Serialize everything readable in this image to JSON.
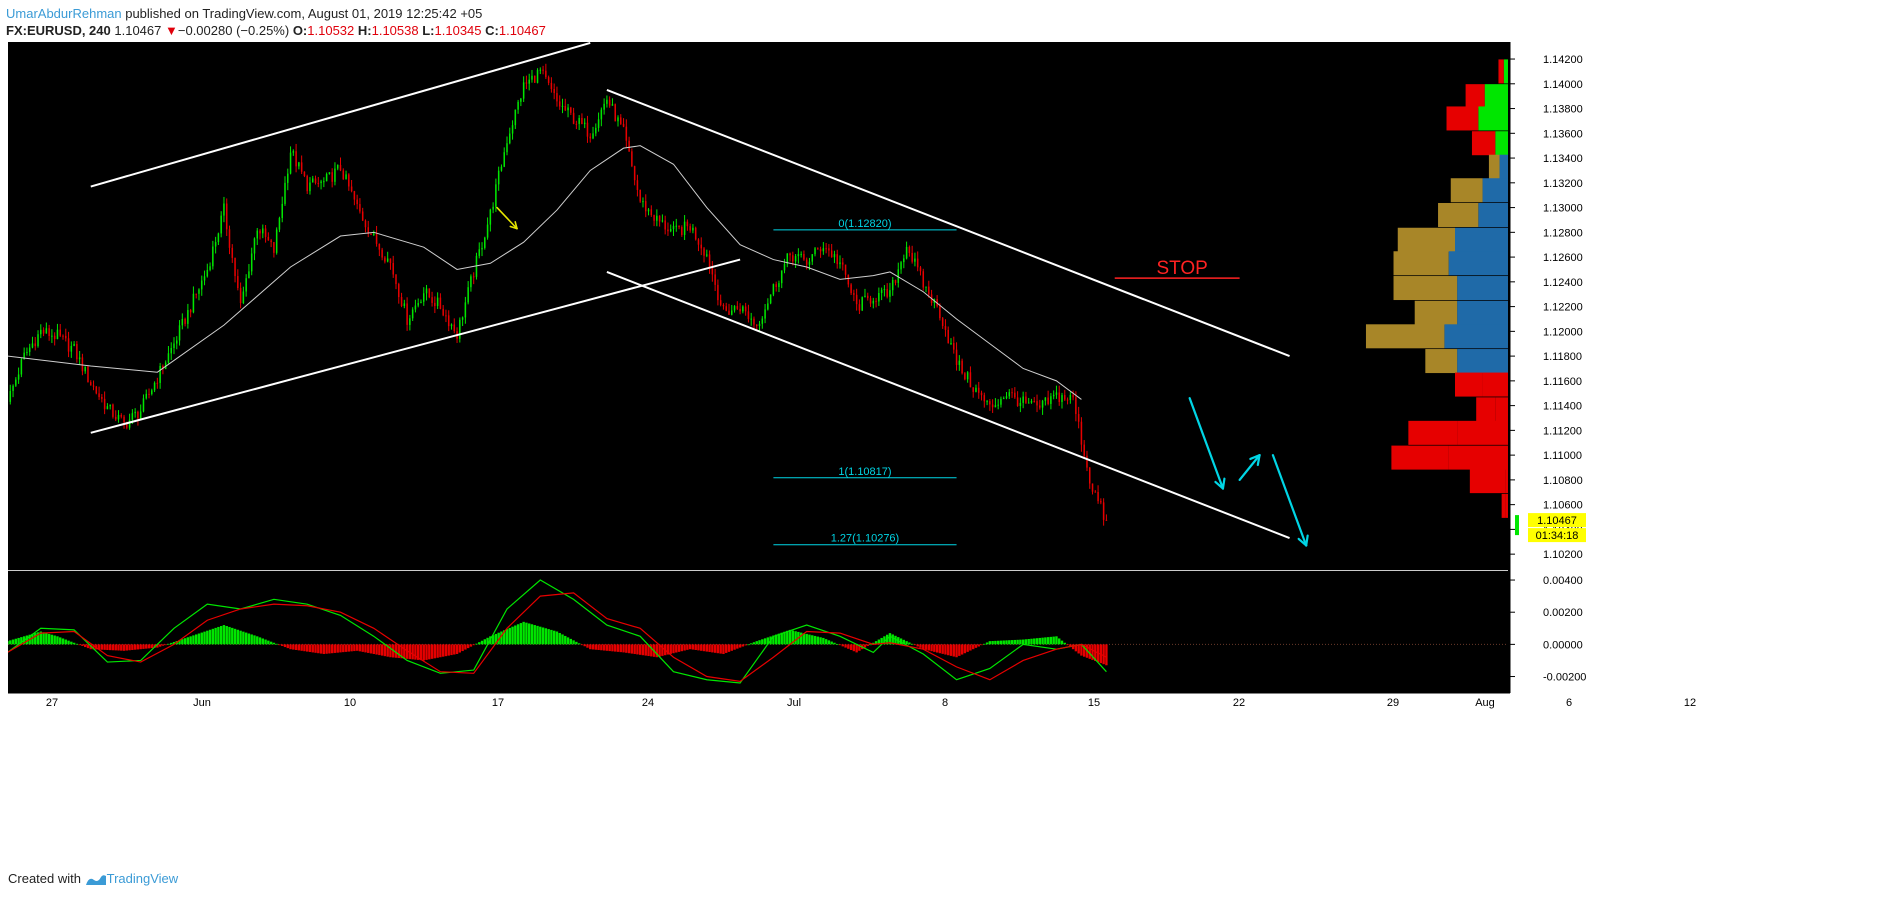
{
  "header": {
    "author": "UmarAbdurRehman",
    "published": " published on TradingView.com, August 01, 2019 12:25:42 +05",
    "symbol": "FX:EURUSD, 240",
    "last": "1.10467",
    "change_arrow": "▼",
    "change": "−0.00280 (−0.25%)",
    "o_label": "O:",
    "o_value": "1.10532",
    "h_label": "H:",
    "h_value": "1.10538",
    "l_label": "L:",
    "l_value": "1.10345",
    "c_label": "C:",
    "c_value": "1.10467"
  },
  "footer": {
    "created_with": "Created with",
    "brand": "TradingView"
  },
  "colors": {
    "background": "#000000",
    "up": "#00e600",
    "down": "#e60000",
    "line": "#ffffff",
    "accent": "#00d5e5",
    "stop": "#ff2222",
    "marker": "#e6e600",
    "vp_buy": "#1f6aa8",
    "vp_sell": "#a88628"
  },
  "chart_data": {
    "type": "candlestick",
    "symbol": "FX:EURUSD",
    "interval": "240",
    "x_ticks": [
      "27",
      "Jun",
      "10",
      "17",
      "24",
      "Jul",
      "8",
      "15",
      "22",
      "29",
      "Aug",
      "6",
      "12"
    ],
    "y_ticks": [
      "1.14200",
      "1.14000",
      "1.13800",
      "1.13600",
      "1.13400",
      "1.13200",
      "1.13000",
      "1.12800",
      "1.12600",
      "1.12400",
      "1.12200",
      "1.12000",
      "1.11800",
      "1.11600",
      "1.11400",
      "1.11200",
      "1.11000",
      "1.10800",
      "1.10600",
      "1.10400",
      "1.10200"
    ],
    "ylim": [
      1.1008,
      1.1437
    ],
    "day_range": [
      0,
      68
    ],
    "close_path": [
      [
        0,
        1.1143
      ],
      [
        1,
        1.118
      ],
      [
        2,
        1.12
      ],
      [
        3,
        1.1196
      ],
      [
        4,
        1.1185
      ],
      [
        5,
        1.1158
      ],
      [
        6,
        1.1138
      ],
      [
        7,
        1.1125
      ],
      [
        8,
        1.1136
      ],
      [
        9,
        1.1163
      ],
      [
        10,
        1.119
      ],
      [
        11,
        1.122
      ],
      [
        12,
        1.125
      ],
      [
        13,
        1.1298
      ],
      [
        14,
        1.122
      ],
      [
        15,
        1.1285
      ],
      [
        16,
        1.1265
      ],
      [
        17,
        1.1346
      ],
      [
        18,
        1.1318
      ],
      [
        19,
        1.132
      ],
      [
        20,
        1.1332
      ],
      [
        21,
        1.13
      ],
      [
        22,
        1.1275
      ],
      [
        23,
        1.1255
      ],
      [
        24,
        1.121
      ],
      [
        25,
        1.1232
      ],
      [
        26,
        1.122
      ],
      [
        27,
        1.1198
      ],
      [
        28,
        1.1248
      ],
      [
        29,
        1.1295
      ],
      [
        30,
        1.1355
      ],
      [
        31,
        1.1398
      ],
      [
        32,
        1.141
      ],
      [
        33,
        1.1385
      ],
      [
        34,
        1.1372
      ],
      [
        35,
        1.136
      ],
      [
        36,
        1.1388
      ],
      [
        37,
        1.136
      ],
      [
        38,
        1.1305
      ],
      [
        39,
        1.129
      ],
      [
        40,
        1.128
      ],
      [
        41,
        1.1285
      ],
      [
        42,
        1.1262
      ],
      [
        43,
        1.1215
      ],
      [
        44,
        1.122
      ],
      [
        45,
        1.1205
      ],
      [
        46,
        1.1235
      ],
      [
        47,
        1.1262
      ],
      [
        48,
        1.1256
      ],
      [
        49,
        1.127
      ],
      [
        50,
        1.1255
      ],
      [
        51,
        1.122
      ],
      [
        52,
        1.1228
      ],
      [
        53,
        1.123
      ],
      [
        54,
        1.127
      ],
      [
        55,
        1.1238
      ],
      [
        56,
        1.1215
      ],
      [
        57,
        1.1175
      ],
      [
        58,
        1.1155
      ],
      [
        59,
        1.1138
      ],
      [
        60,
        1.115
      ],
      [
        61,
        1.1142
      ],
      [
        62,
        1.1138
      ],
      [
        63,
        1.1148
      ],
      [
        64,
        1.1145
      ],
      [
        65,
        1.108
      ],
      [
        66,
        1.1045
      ]
    ],
    "moving_average": [
      [
        0,
        1.118
      ],
      [
        5,
        1.1172
      ],
      [
        9,
        1.1167
      ],
      [
        13,
        1.1205
      ],
      [
        17,
        1.1252
      ],
      [
        20,
        1.1277
      ],
      [
        22,
        1.128
      ],
      [
        25,
        1.1268
      ],
      [
        27,
        1.125
      ],
      [
        29,
        1.1255
      ],
      [
        31,
        1.1272
      ],
      [
        33,
        1.1298
      ],
      [
        35,
        1.133
      ],
      [
        37,
        1.1348
      ],
      [
        38,
        1.135
      ],
      [
        40,
        1.1335
      ],
      [
        42,
        1.13
      ],
      [
        44,
        1.127
      ],
      [
        46,
        1.1258
      ],
      [
        48,
        1.1252
      ],
      [
        50,
        1.1242
      ],
      [
        52,
        1.1245
      ],
      [
        53,
        1.1248
      ],
      [
        55,
        1.1232
      ],
      [
        57,
        1.121
      ],
      [
        59,
        1.119
      ],
      [
        61,
        1.117
      ],
      [
        63,
        1.116
      ],
      [
        64.5,
        1.1145
      ]
    ],
    "trendlines": [
      {
        "name": "ascending-channel-top",
        "from": [
          5,
          1.1317
        ],
        "to": [
          35,
          1.1433
        ]
      },
      {
        "name": "ascending-channel-bottom",
        "from": [
          5,
          1.1118
        ],
        "to": [
          44,
          1.1258
        ]
      },
      {
        "name": "descending-channel-top",
        "from": [
          36,
          1.1395
        ],
        "to": [
          77,
          1.118
        ]
      },
      {
        "name": "descending-channel-bottom",
        "from": [
          36,
          1.1248
        ],
        "to": [
          77,
          1.1033
        ]
      }
    ],
    "fib_levels": [
      {
        "label": "0(1.12820)",
        "value": 1.1282,
        "from": 46,
        "to": 57
      },
      {
        "label": "1(1.10817)",
        "value": 1.10817,
        "from": 46,
        "to": 57
      },
      {
        "label": "1.27(1.10276)",
        "value": 1.10276,
        "from": 46,
        "to": 57
      }
    ],
    "stop_label": "STOP",
    "stop_line": {
      "value": 1.1243,
      "from": 66.5,
      "to": 74
    },
    "projection_arrows": [
      {
        "from": [
          71,
          1.1146
        ],
        "to": [
          73,
          1.1073
        ]
      },
      {
        "from": [
          74,
          1.108
        ],
        "to": [
          75.2,
          1.11
        ]
      },
      {
        "from": [
          76,
          1.11
        ],
        "to": [
          78,
          1.1027
        ]
      }
    ],
    "marker_arrow": {
      "from": [
        29.4,
        1.13
      ],
      "to": [
        30.6,
        1.1283
      ]
    },
    "last_price": {
      "value": 1.10467,
      "label": "1.10467",
      "countdown": "01:34:18"
    },
    "volume_profile": [
      {
        "price": 1.141,
        "buy": 4,
        "sell": 5
      },
      {
        "price": 1.139,
        "buy": 22,
        "sell": 18
      },
      {
        "price": 1.1372,
        "buy": 28,
        "sell": 30
      },
      {
        "price": 1.1352,
        "buy": 12,
        "sell": 22
      },
      {
        "price": 1.1333,
        "buy": 8,
        "sell": 10
      },
      {
        "price": 1.1314,
        "buy": 24,
        "sell": 30
      },
      {
        "price": 1.1294,
        "buy": 28,
        "sell": 38
      },
      {
        "price": 1.1274,
        "buy": 50,
        "sell": 54
      },
      {
        "price": 1.1255,
        "buy": 56,
        "sell": 52
      },
      {
        "price": 1.1235,
        "buy": 48,
        "sell": 60
      },
      {
        "price": 1.1215,
        "buy": 48,
        "sell": 40
      },
      {
        "price": 1.1196,
        "buy": 60,
        "sell": 74
      },
      {
        "price": 1.1176,
        "buy": 48,
        "sell": 30
      },
      {
        "price": 1.1157,
        "buy": 24,
        "sell": 26
      },
      {
        "price": 1.1137,
        "buy": 12,
        "sell": 18
      },
      {
        "price": 1.1118,
        "buy": 48,
        "sell": 46
      },
      {
        "price": 1.1098,
        "buy": 56,
        "sell": 54
      },
      {
        "price": 1.1079,
        "buy": 2,
        "sell": 34
      },
      {
        "price": 1.1059,
        "buy": 2,
        "sell": 4
      }
    ],
    "macd": {
      "y_ticks": [
        "0.00400",
        "0.00200",
        "0.00000",
        "-0.00200"
      ],
      "ylim": [
        -0.0029,
        0.0045
      ],
      "histogram_path": [
        [
          0,
          0.0002
        ],
        [
          2,
          0.0008
        ],
        [
          3,
          0.0005
        ],
        [
          5,
          -0.0003
        ],
        [
          7,
          -0.0004
        ],
        [
          9,
          -0.0002
        ],
        [
          11,
          0.0005
        ],
        [
          13,
          0.0012
        ],
        [
          15,
          0.0005
        ],
        [
          17,
          -0.0003
        ],
        [
          19,
          -0.0006
        ],
        [
          21,
          -0.0004
        ],
        [
          23,
          -0.0008
        ],
        [
          25,
          -0.001
        ],
        [
          27,
          -0.0006
        ],
        [
          29,
          0.0005
        ],
        [
          31,
          0.0014
        ],
        [
          33,
          0.0008
        ],
        [
          35,
          -0.0003
        ],
        [
          37,
          -0.0005
        ],
        [
          39,
          -0.0008
        ],
        [
          41,
          -0.0003
        ],
        [
          43,
          -0.0006
        ],
        [
          45,
          0.0002
        ],
        [
          47,
          0.0009
        ],
        [
          49,
          0.0004
        ],
        [
          51,
          -0.0005
        ],
        [
          53,
          0.0007
        ],
        [
          55,
          -0.0003
        ],
        [
          57,
          -0.0008
        ],
        [
          59,
          0.0002
        ],
        [
          61,
          0.0003
        ],
        [
          63,
          0.0005
        ],
        [
          64.5,
          -0.0007
        ],
        [
          66,
          -0.0013
        ]
      ],
      "macd_line": [
        [
          0,
          -0.0005
        ],
        [
          2,
          0.001
        ],
        [
          4,
          0.0009
        ],
        [
          6,
          -0.0011
        ],
        [
          8,
          -0.001
        ],
        [
          10,
          0.001
        ],
        [
          12,
          0.0025
        ],
        [
          14,
          0.0022
        ],
        [
          16,
          0.0028
        ],
        [
          18,
          0.0025
        ],
        [
          20,
          0.0018
        ],
        [
          22,
          0.0005
        ],
        [
          24,
          -0.001
        ],
        [
          26,
          -0.0018
        ],
        [
          28,
          -0.0016
        ],
        [
          30,
          0.0022
        ],
        [
          32,
          0.004
        ],
        [
          34,
          0.0028
        ],
        [
          36,
          0.0012
        ],
        [
          38,
          0.0005
        ],
        [
          40,
          -0.0017
        ],
        [
          42,
          -0.0022
        ],
        [
          44,
          -0.0024
        ],
        [
          46,
          0.0005
        ],
        [
          48,
          0.0012
        ],
        [
          50,
          0.0005
        ],
        [
          52,
          -0.0005
        ],
        [
          53,
          0.0005
        ],
        [
          55,
          -0.0006
        ],
        [
          57,
          -0.0022
        ],
        [
          59,
          -0.0015
        ],
        [
          61,
          0.0
        ],
        [
          63,
          -0.0003
        ],
        [
          64.5,
          0.0
        ],
        [
          66,
          -0.0017
        ]
      ],
      "signal_line": [
        [
          0,
          -0.0005
        ],
        [
          2,
          0.0007
        ],
        [
          4,
          0.0008
        ],
        [
          6,
          -0.0007
        ],
        [
          8,
          -0.0011
        ],
        [
          10,
          0.0
        ],
        [
          12,
          0.0015
        ],
        [
          14,
          0.0022
        ],
        [
          16,
          0.0025
        ],
        [
          18,
          0.0024
        ],
        [
          20,
          0.002
        ],
        [
          22,
          0.001
        ],
        [
          24,
          -0.0004
        ],
        [
          26,
          -0.0017
        ],
        [
          28,
          -0.0018
        ],
        [
          30,
          0.001
        ],
        [
          32,
          0.003
        ],
        [
          34,
          0.0032
        ],
        [
          36,
          0.0016
        ],
        [
          38,
          0.001
        ],
        [
          40,
          -0.0008
        ],
        [
          42,
          -0.002
        ],
        [
          44,
          -0.0023
        ],
        [
          46,
          -0.0008
        ],
        [
          48,
          0.0008
        ],
        [
          50,
          0.0007
        ],
        [
          52,
          0.0
        ],
        [
          53,
          0.0001
        ],
        [
          55,
          -0.0003
        ],
        [
          57,
          -0.0014
        ],
        [
          59,
          -0.0022
        ],
        [
          61,
          -0.001
        ],
        [
          63,
          -0.0003
        ],
        [
          64.5,
          0.0
        ],
        [
          66,
          -0.0008
        ]
      ]
    }
  }
}
